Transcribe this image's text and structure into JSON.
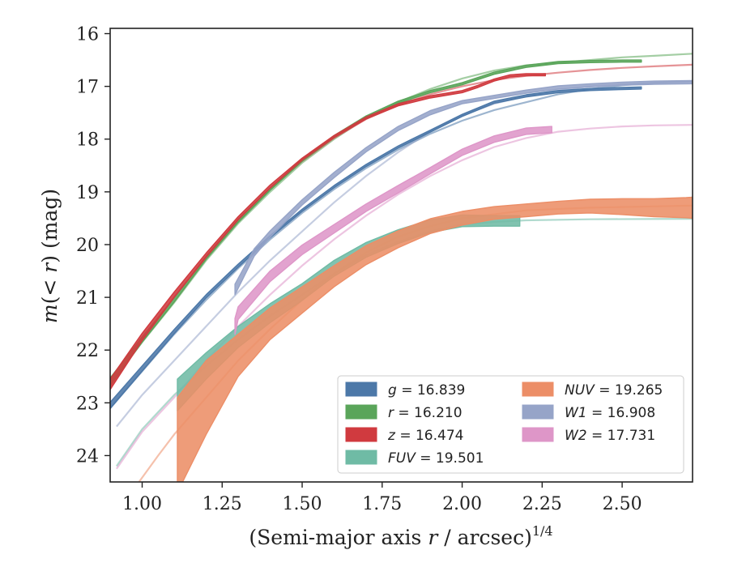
{
  "chart_data": {
    "type": "line",
    "xlabel_text": "(Semi-major axis ",
    "xlabel_var": "r",
    "xlabel_unit": " / arcsec)",
    "xlabel_exp": "1/4",
    "ylabel_var_m": "m",
    "ylabel_paren_open": "(",
    "ylabel_lt": "< ",
    "ylabel_var_r": "r",
    "ylabel_rest": ") (mag)",
    "xlim": [
      0.9,
      2.72
    ],
    "ylim": [
      24.5,
      15.9
    ],
    "y_inverted": true,
    "x_ticks": [
      1.0,
      1.25,
      1.5,
      1.75,
      2.0,
      2.25,
      2.5
    ],
    "x_tick_labels": [
      "1.00",
      "1.25",
      "1.50",
      "1.75",
      "2.00",
      "2.25",
      "2.50"
    ],
    "y_ticks": [
      16,
      17,
      18,
      19,
      20,
      21,
      22,
      23,
      24
    ],
    "y_tick_labels": [
      "16",
      "17",
      "18",
      "19",
      "20",
      "21",
      "22",
      "23",
      "24"
    ],
    "grid": false,
    "legend_position": "lower-right",
    "legend": [
      {
        "key": "g",
        "var": "g",
        "value": " = 16.839",
        "color": "#4c78a8"
      },
      {
        "key": "r",
        "var": "r",
        "value": " = 16.210",
        "color": "#5aa55a"
      },
      {
        "key": "z",
        "var": "z",
        "value": " = 16.474",
        "color": "#d03a3f"
      },
      {
        "key": "FUV",
        "var": "FUV",
        "value": " = 19.501",
        "color": "#6fbba5"
      },
      {
        "key": "NUV",
        "var": "NUV",
        "value": " = 19.265",
        "color": "#ec8e67"
      },
      {
        "key": "W1",
        "var": "W1",
        "value": " = 16.908",
        "color": "#96a4c8"
      },
      {
        "key": "W2",
        "var": "W2",
        "value": " = 17.731",
        "color": "#de96c8"
      }
    ],
    "series": [
      {
        "key": "g",
        "color": "#4c78a8",
        "model_x": [
          0.9,
          1.0,
          1.1,
          1.2,
          1.3,
          1.4,
          1.5,
          1.6,
          1.7,
          1.8,
          1.9,
          2.0,
          2.1,
          2.2,
          2.3,
          2.4,
          2.5,
          2.6,
          2.72
        ],
        "model_y": [
          23.1,
          22.4,
          21.7,
          21.05,
          20.45,
          19.9,
          19.4,
          18.95,
          18.55,
          18.2,
          17.9,
          17.65,
          17.45,
          17.3,
          17.15,
          17.05,
          16.98,
          16.93,
          16.9
        ],
        "x": [
          0.9,
          1.0,
          1.1,
          1.2,
          1.3,
          1.4,
          1.5,
          1.6,
          1.7,
          1.8,
          1.9,
          2.0,
          2.1,
          2.2,
          2.3,
          2.4,
          2.5,
          2.56
        ],
        "y": [
          23.05,
          22.35,
          21.65,
          20.98,
          20.4,
          19.85,
          19.35,
          18.9,
          18.5,
          18.15,
          17.85,
          17.55,
          17.3,
          17.18,
          17.1,
          17.06,
          17.04,
          17.03
        ],
        "err": [
          0.06,
          0.05,
          0.04,
          0.03,
          0.03,
          0.02,
          0.02,
          0.02,
          0.02,
          0.02,
          0.02,
          0.02,
          0.02,
          0.02,
          0.02,
          0.02,
          0.02,
          0.02
        ]
      },
      {
        "key": "r",
        "color": "#5aa55a",
        "model_x": [
          0.9,
          1.0,
          1.1,
          1.2,
          1.3,
          1.4,
          1.5,
          1.6,
          1.7,
          1.8,
          1.9,
          2.0,
          2.1,
          2.2,
          2.3,
          2.4,
          2.5,
          2.6,
          2.72
        ],
        "model_y": [
          22.65,
          21.85,
          21.1,
          20.3,
          19.6,
          19.0,
          18.45,
          18.0,
          17.6,
          17.3,
          17.05,
          16.85,
          16.7,
          16.6,
          16.55,
          16.5,
          16.45,
          16.42,
          16.38
        ],
        "x": [
          0.9,
          1.0,
          1.1,
          1.2,
          1.3,
          1.4,
          1.5,
          1.6,
          1.7,
          1.8,
          1.9,
          2.0,
          2.1,
          2.2,
          2.3,
          2.4,
          2.5,
          2.56
        ],
        "y": [
          22.6,
          21.8,
          21.05,
          20.25,
          19.55,
          18.95,
          18.4,
          17.95,
          17.58,
          17.3,
          17.1,
          16.95,
          16.75,
          16.62,
          16.55,
          16.53,
          16.52,
          16.52
        ],
        "err": [
          0.07,
          0.05,
          0.04,
          0.03,
          0.03,
          0.02,
          0.02,
          0.02,
          0.02,
          0.02,
          0.02,
          0.02,
          0.02,
          0.02,
          0.02,
          0.02,
          0.02,
          0.02
        ]
      },
      {
        "key": "z",
        "color": "#d03a3f",
        "model_x": [
          0.9,
          1.0,
          1.1,
          1.2,
          1.3,
          1.4,
          1.5,
          1.6,
          1.7,
          1.8,
          1.9,
          2.0,
          2.1,
          2.2,
          2.3,
          2.4,
          2.5,
          2.6,
          2.72
        ],
        "model_y": [
          22.7,
          21.8,
          21.0,
          20.25,
          19.55,
          18.95,
          18.42,
          17.98,
          17.62,
          17.35,
          17.15,
          17.0,
          16.88,
          16.8,
          16.74,
          16.69,
          16.65,
          16.62,
          16.59
        ],
        "x": [
          0.9,
          1.0,
          1.1,
          1.2,
          1.3,
          1.4,
          1.5,
          1.6,
          1.7,
          1.8,
          1.9,
          2.0,
          2.05,
          2.1,
          2.15,
          2.2,
          2.26
        ],
        "y": [
          22.65,
          21.75,
          20.95,
          20.2,
          19.5,
          18.9,
          18.38,
          17.95,
          17.6,
          17.35,
          17.2,
          17.1,
          17.0,
          16.88,
          16.8,
          16.78,
          16.78
        ],
        "err": [
          0.1,
          0.07,
          0.05,
          0.04,
          0.03,
          0.03,
          0.02,
          0.02,
          0.02,
          0.02,
          0.02,
          0.02,
          0.02,
          0.02,
          0.02,
          0.02,
          0.02
        ]
      },
      {
        "key": "FUV",
        "color": "#6fbba5",
        "model_x": [
          0.92,
          1.0,
          1.1,
          1.2,
          1.3,
          1.4,
          1.5,
          1.6,
          1.7,
          1.8,
          1.9,
          2.0,
          2.1,
          2.2,
          2.4,
          2.72
        ],
        "model_y": [
          24.2,
          23.5,
          22.85,
          22.3,
          21.8,
          21.35,
          20.95,
          20.55,
          20.2,
          19.95,
          19.75,
          19.62,
          19.57,
          19.54,
          19.52,
          19.51
        ],
        "x": [
          1.11,
          1.2,
          1.3,
          1.4,
          1.5,
          1.6,
          1.7,
          1.8,
          1.9,
          2.0,
          2.1,
          2.18
        ],
        "y": [
          22.85,
          22.3,
          21.75,
          21.3,
          20.9,
          20.45,
          20.1,
          19.85,
          19.65,
          19.55,
          19.55,
          19.55
        ],
        "err": [
          0.3,
          0.25,
          0.2,
          0.18,
          0.16,
          0.15,
          0.14,
          0.13,
          0.12,
          0.11,
          0.1,
          0.1
        ]
      },
      {
        "key": "NUV",
        "color": "#ec8e67",
        "model_x": [
          0.99,
          1.05,
          1.1,
          1.2,
          1.3,
          1.4,
          1.5,
          1.6,
          1.7,
          1.8,
          1.9,
          2.0,
          2.2,
          2.4,
          2.72
        ],
        "model_y": [
          24.5,
          24.0,
          23.6,
          22.9,
          22.2,
          21.6,
          21.05,
          20.55,
          20.15,
          19.85,
          19.65,
          19.5,
          19.35,
          19.3,
          19.26
        ],
        "x": [
          1.11,
          1.2,
          1.3,
          1.4,
          1.5,
          1.6,
          1.7,
          1.8,
          1.9,
          2.0,
          2.1,
          2.2,
          2.3,
          2.4,
          2.5,
          2.6,
          2.7,
          2.72
        ],
        "y": [
          23.8,
          22.9,
          22.1,
          21.5,
          21.05,
          20.6,
          20.2,
          19.9,
          19.65,
          19.5,
          19.4,
          19.35,
          19.3,
          19.27,
          19.28,
          19.3,
          19.3,
          19.3
        ],
        "err": [
          0.9,
          0.7,
          0.4,
          0.3,
          0.25,
          0.2,
          0.18,
          0.16,
          0.14,
          0.13,
          0.12,
          0.12,
          0.12,
          0.13,
          0.15,
          0.17,
          0.19,
          0.2
        ]
      },
      {
        "key": "W1",
        "color": "#96a4c8",
        "model_x": [
          0.92,
          1.0,
          1.1,
          1.2,
          1.3,
          1.4,
          1.5,
          1.6,
          1.7,
          1.8,
          1.9,
          2.0,
          2.1,
          2.2,
          2.3,
          2.4,
          2.5,
          2.6,
          2.72
        ],
        "model_y": [
          23.45,
          22.85,
          22.2,
          21.55,
          20.9,
          20.3,
          19.75,
          19.2,
          18.7,
          18.25,
          17.85,
          17.55,
          17.33,
          17.18,
          17.07,
          17.0,
          16.96,
          16.93,
          16.91
        ],
        "x": [
          1.29,
          1.35,
          1.4,
          1.5,
          1.6,
          1.7,
          1.8,
          1.9,
          2.0,
          2.1,
          2.2,
          2.3,
          2.4,
          2.5,
          2.6,
          2.72
        ],
        "y": [
          20.85,
          20.15,
          19.8,
          19.2,
          18.68,
          18.2,
          17.8,
          17.5,
          17.3,
          17.2,
          17.1,
          17.02,
          16.98,
          16.95,
          16.93,
          16.92
        ],
        "err": [
          0.1,
          0.07,
          0.06,
          0.05,
          0.05,
          0.04,
          0.04,
          0.04,
          0.03,
          0.03,
          0.03,
          0.03,
          0.03,
          0.03,
          0.03,
          0.03
        ]
      },
      {
        "key": "W2",
        "color": "#de96c8",
        "model_x": [
          0.92,
          1.0,
          1.1,
          1.2,
          1.3,
          1.4,
          1.5,
          1.6,
          1.7,
          1.8,
          1.9,
          2.0,
          2.1,
          2.2,
          2.3,
          2.4,
          2.5,
          2.6,
          2.72
        ],
        "model_y": [
          24.25,
          23.55,
          22.9,
          22.2,
          21.55,
          20.95,
          20.4,
          19.9,
          19.45,
          19.05,
          18.7,
          18.4,
          18.15,
          17.98,
          17.86,
          17.8,
          17.76,
          17.74,
          17.73
        ],
        "x": [
          1.29,
          1.3,
          1.4,
          1.5,
          1.6,
          1.7,
          1.8,
          1.9,
          2.0,
          2.1,
          2.2,
          2.28
        ],
        "y": [
          21.55,
          21.3,
          20.6,
          20.1,
          19.7,
          19.3,
          18.95,
          18.6,
          18.25,
          18.0,
          17.85,
          17.82
        ],
        "err": [
          0.15,
          0.12,
          0.1,
          0.09,
          0.08,
          0.07,
          0.07,
          0.06,
          0.06,
          0.06,
          0.06,
          0.06
        ]
      }
    ]
  }
}
